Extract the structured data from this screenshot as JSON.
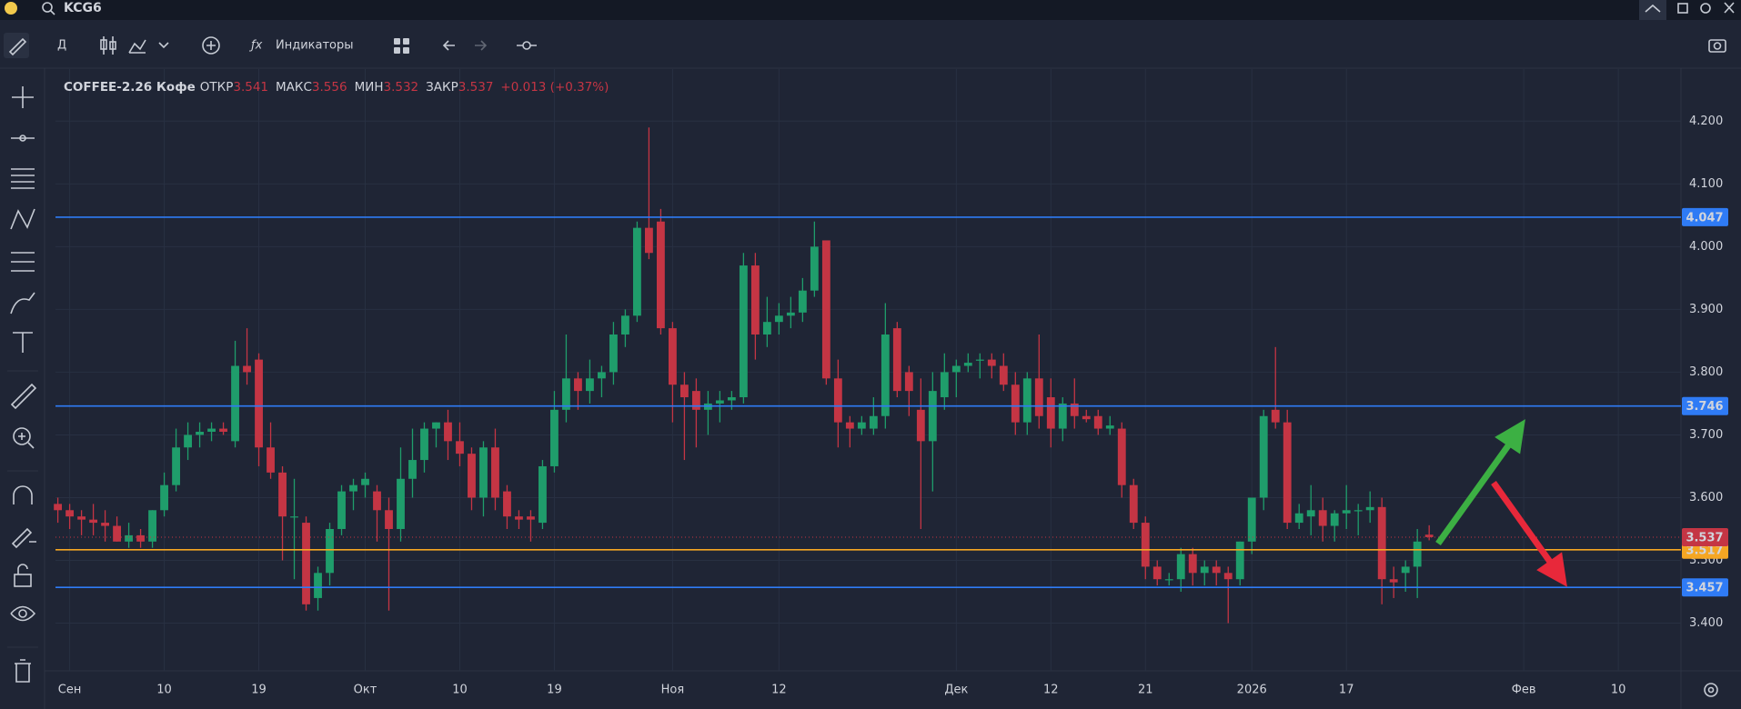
{
  "top_bar": {
    "symbol": "KCG6"
  },
  "toolbar": {
    "interval": "Д",
    "indicators": "Индикаторы"
  },
  "chart_data": {
    "type": "candlestick",
    "title": "COFFEE-2.26 Кофе",
    "legend_labels": {
      "open": "ОТКР",
      "high": "МАКС",
      "low": "МИН",
      "close": "ЗАКР"
    },
    "change": "+0.013 (+0.37%)",
    "up_color": "#1f9d6b",
    "down_color": "#c43544",
    "open": [
      3.59,
      3.58,
      3.57,
      3.565,
      3.56,
      3.555,
      3.53,
      3.54,
      3.53,
      3.58,
      3.62,
      3.68,
      3.7,
      3.705,
      3.71,
      3.69,
      3.81,
      3.82,
      3.68,
      3.64,
      3.57,
      3.56,
      3.44,
      3.48,
      3.55,
      3.61,
      3.62,
      3.61,
      3.58,
      3.55,
      3.63,
      3.66,
      3.71,
      3.72,
      3.69,
      3.67,
      3.6,
      3.68,
      3.61,
      3.57,
      3.57,
      3.56,
      3.65,
      3.74,
      3.79,
      3.77,
      3.79,
      3.8,
      3.86,
      3.89,
      4.03,
      4.04,
      3.87,
      3.78,
      3.77,
      3.74,
      3.75,
      3.755,
      3.76,
      3.97,
      3.86,
      3.88,
      3.89,
      3.895,
      3.93,
      4.01,
      3.79,
      3.72,
      3.71,
      3.71,
      3.73,
      3.87,
      3.8,
      3.74,
      3.69,
      3.76,
      3.8,
      3.81,
      3.82,
      3.82,
      3.81,
      3.78,
      3.72,
      3.79,
      3.76,
      3.71,
      3.75,
      3.73,
      3.73,
      3.71,
      3.71,
      3.62,
      3.56,
      3.49,
      3.47,
      3.47,
      3.51,
      3.48,
      3.49,
      3.48,
      3.47,
      3.53,
      3.6,
      3.74,
      3.72,
      3.56,
      3.57,
      3.58,
      3.555,
      3.575,
      3.58,
      3.58,
      3.585,
      3.47,
      3.48,
      3.49,
      3.541
    ],
    "high": [
      3.6,
      3.59,
      3.58,
      3.59,
      3.58,
      3.57,
      3.56,
      3.55,
      3.58,
      3.64,
      3.71,
      3.72,
      3.72,
      3.72,
      3.72,
      3.85,
      3.87,
      3.83,
      3.72,
      3.65,
      3.63,
      3.57,
      3.49,
      3.56,
      3.62,
      3.63,
      3.64,
      3.62,
      3.6,
      3.68,
      3.71,
      3.72,
      3.72,
      3.74,
      3.72,
      3.68,
      3.69,
      3.71,
      3.62,
      3.58,
      3.58,
      3.66,
      3.77,
      3.86,
      3.8,
      3.82,
      3.81,
      3.88,
      3.9,
      4.04,
      4.19,
      4.06,
      3.88,
      3.8,
      3.79,
      3.77,
      3.77,
      3.77,
      3.99,
      3.99,
      3.92,
      3.91,
      3.92,
      3.95,
      4.04,
      4.01,
      3.82,
      3.73,
      3.73,
      3.76,
      3.91,
      3.88,
      3.81,
      3.79,
      3.8,
      3.83,
      3.82,
      3.83,
      3.83,
      3.83,
      3.83,
      3.8,
      3.8,
      3.86,
      3.79,
      3.76,
      3.79,
      3.74,
      3.74,
      3.73,
      3.72,
      3.63,
      3.57,
      3.5,
      3.48,
      3.52,
      3.52,
      3.5,
      3.5,
      3.49,
      3.53,
      3.6,
      3.74,
      3.84,
      3.74,
      3.59,
      3.62,
      3.6,
      3.58,
      3.62,
      3.59,
      3.61,
      3.6,
      3.49,
      3.5,
      3.55,
      3.556
    ],
    "low": [
      3.56,
      3.55,
      3.54,
      3.54,
      3.53,
      3.53,
      3.52,
      3.52,
      3.52,
      3.57,
      3.61,
      3.66,
      3.68,
      3.69,
      3.7,
      3.68,
      3.78,
      3.65,
      3.63,
      3.5,
      3.47,
      3.42,
      3.42,
      3.46,
      3.54,
      3.58,
      3.6,
      3.53,
      3.42,
      3.53,
      3.6,
      3.64,
      3.68,
      3.66,
      3.65,
      3.58,
      3.57,
      3.58,
      3.55,
      3.55,
      3.53,
      3.55,
      3.64,
      3.72,
      3.74,
      3.75,
      3.76,
      3.78,
      3.84,
      3.88,
      3.98,
      3.86,
      3.72,
      3.66,
      3.68,
      3.7,
      3.72,
      3.74,
      3.75,
      3.82,
      3.84,
      3.86,
      3.87,
      3.88,
      3.92,
      3.78,
      3.68,
      3.68,
      3.7,
      3.7,
      3.71,
      3.76,
      3.73,
      3.55,
      3.61,
      3.74,
      3.76,
      3.8,
      3.79,
      3.79,
      3.77,
      3.7,
      3.7,
      3.71,
      3.68,
      3.69,
      3.71,
      3.72,
      3.7,
      3.7,
      3.6,
      3.55,
      3.47,
      3.46,
      3.46,
      3.45,
      3.46,
      3.46,
      3.46,
      3.4,
      3.46,
      3.51,
      3.58,
      3.71,
      3.55,
      3.55,
      3.54,
      3.53,
      3.53,
      3.55,
      3.54,
      3.56,
      3.43,
      3.44,
      3.45,
      3.44,
      3.532
    ],
    "close": [
      3.58,
      3.57,
      3.565,
      3.56,
      3.555,
      3.53,
      3.54,
      3.53,
      3.58,
      3.62,
      3.68,
      3.7,
      3.705,
      3.71,
      3.705,
      3.81,
      3.8,
      3.68,
      3.64,
      3.57,
      3.57,
      3.43,
      3.48,
      3.55,
      3.61,
      3.62,
      3.63,
      3.58,
      3.55,
      3.63,
      3.66,
      3.71,
      3.72,
      3.69,
      3.67,
      3.6,
      3.68,
      3.6,
      3.57,
      3.565,
      3.565,
      3.65,
      3.74,
      3.79,
      3.77,
      3.79,
      3.8,
      3.86,
      3.89,
      4.03,
      3.99,
      3.87,
      3.78,
      3.76,
      3.74,
      3.75,
      3.755,
      3.76,
      3.97,
      3.86,
      3.88,
      3.89,
      3.895,
      3.93,
      4.0,
      3.79,
      3.72,
      3.71,
      3.72,
      3.73,
      3.86,
      3.77,
      3.77,
      3.69,
      3.77,
      3.8,
      3.81,
      3.815,
      3.82,
      3.81,
      3.78,
      3.72,
      3.79,
      3.73,
      3.71,
      3.75,
      3.73,
      3.725,
      3.71,
      3.715,
      3.62,
      3.56,
      3.49,
      3.47,
      3.47,
      3.51,
      3.48,
      3.49,
      3.48,
      3.47,
      3.53,
      3.6,
      3.73,
      3.72,
      3.56,
      3.575,
      3.58,
      3.555,
      3.575,
      3.58,
      3.58,
      3.585,
      3.47,
      3.465,
      3.49,
      3.53,
      3.537
    ],
    "xlim": [
      -0.2,
      137.3
    ],
    "xticks": [
      {
        "value": 1,
        "label": "Сен"
      },
      {
        "value": 9,
        "label": "10"
      },
      {
        "value": 17,
        "label": "19"
      },
      {
        "value": 26,
        "label": "Окт"
      },
      {
        "value": 34,
        "label": "10"
      },
      {
        "value": 42,
        "label": "19"
      },
      {
        "value": 52,
        "label": "Ноя"
      },
      {
        "value": 61,
        "label": "12"
      },
      {
        "value": 76,
        "label": "Дек"
      },
      {
        "value": 84,
        "label": "12"
      },
      {
        "value": 92,
        "label": "21"
      },
      {
        "value": 101,
        "label": "2026"
      },
      {
        "value": 109,
        "label": "17"
      },
      {
        "value": 124,
        "label": "Фев"
      },
      {
        "value": 132,
        "label": "10"
      }
    ],
    "ylim": [
      3.324,
      4.283
    ],
    "yticks": [
      {
        "value": 3.4,
        "label": "3.400"
      },
      {
        "value": 3.5,
        "label": "3.500"
      },
      {
        "value": 3.6,
        "label": "3.600"
      },
      {
        "value": 3.7,
        "label": "3.700"
      },
      {
        "value": 3.8,
        "label": "3.800"
      },
      {
        "value": 3.9,
        "label": "3.900"
      },
      {
        "value": 4.0,
        "label": "4.000"
      },
      {
        "value": 4.1,
        "label": "4.100"
      },
      {
        "value": 4.2,
        "label": "4.200"
      }
    ],
    "grid": true,
    "levels": [
      {
        "value": 4.047,
        "color": "#2f7bf5"
      },
      {
        "value": 3.746,
        "color": "#2f7bf5"
      },
      {
        "value": 3.517,
        "color": "#f5a623"
      },
      {
        "value": 3.457,
        "color": "#2f7bf5"
      }
    ]
  }
}
